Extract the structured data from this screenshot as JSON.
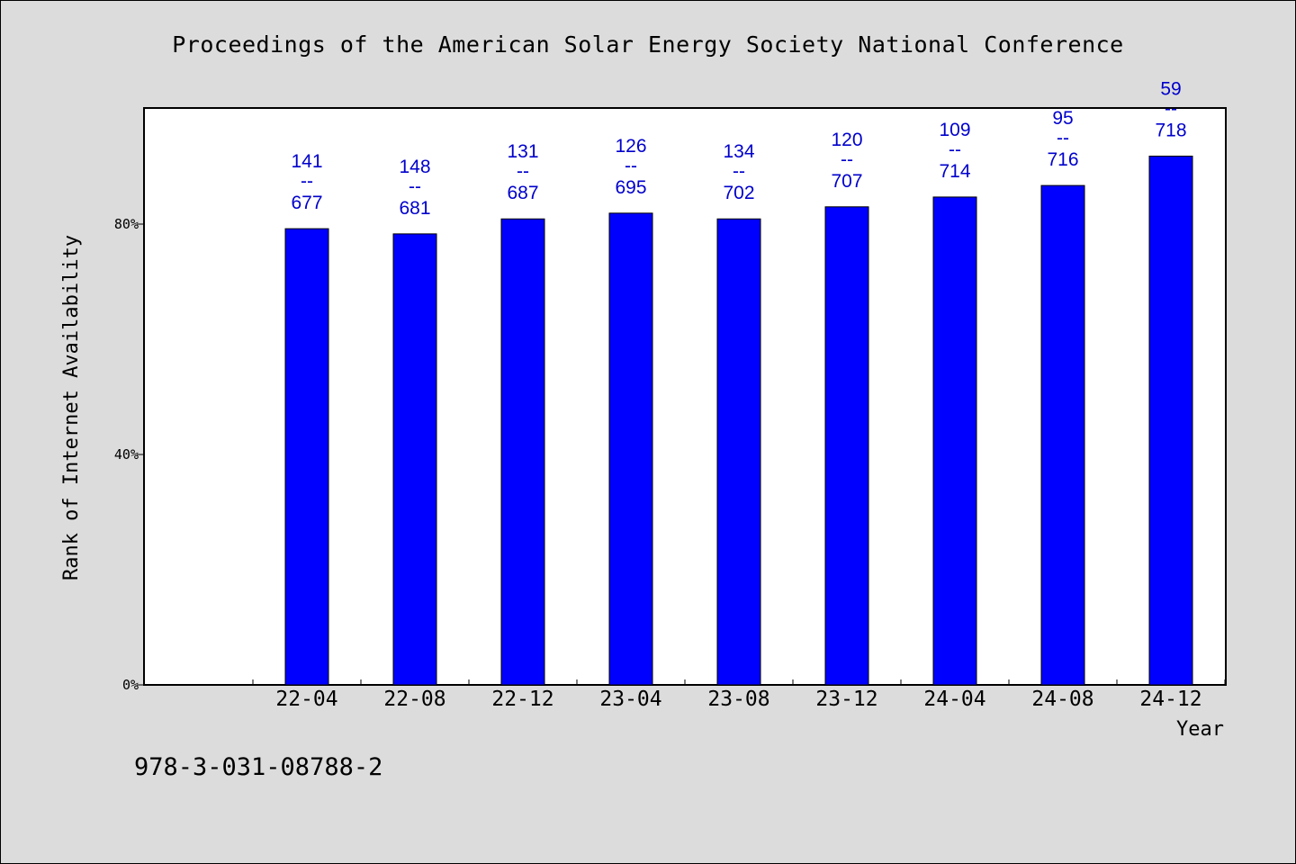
{
  "chart_data": {
    "type": "bar",
    "title": "Proceedings of the American Solar Energy Society National Conference",
    "xlabel": "Year",
    "ylabel": "Rank of Internet Availability",
    "categories": [
      "22-04",
      "22-08",
      "22-12",
      "23-04",
      "23-08",
      "23-12",
      "24-04",
      "24-08",
      "24-12"
    ],
    "ranks": [
      141,
      148,
      131,
      126,
      134,
      120,
      109,
      95,
      59
    ],
    "totals": [
      677,
      681,
      687,
      695,
      702,
      707,
      714,
      716,
      718
    ],
    "values": [
      79.2,
      78.3,
      80.9,
      81.9,
      80.9,
      83.0,
      84.7,
      86.7,
      91.8
    ],
    "ylim": [
      0,
      100
    ],
    "yticks": [
      0,
      40,
      80
    ],
    "ytick_labels": [
      "0%",
      "40%",
      "80%"
    ],
    "label_separator": "--",
    "grid": false,
    "bar_color": "#0000ff",
    "label_color": "#0000cc",
    "background_color": "#dcdcdc",
    "plot_background_color": "#ffffff"
  },
  "footer": {
    "isbn": "978-3-031-08788-2"
  }
}
